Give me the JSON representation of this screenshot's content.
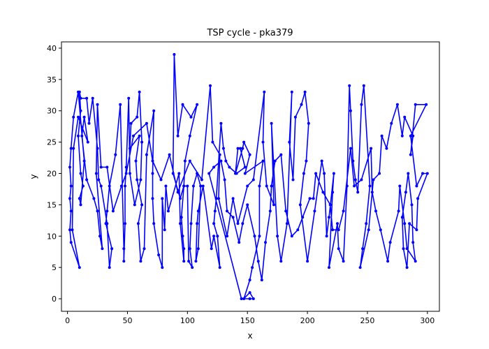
{
  "chart_data": {
    "type": "line",
    "title": "TSP cycle - pka379",
    "xlabel": "x",
    "ylabel": "y",
    "xlim": [
      -5,
      310
    ],
    "ylim": [
      -2,
      41
    ],
    "xticks": [
      0,
      50,
      100,
      150,
      200,
      250,
      300
    ],
    "yticks": [
      0,
      5,
      10,
      15,
      20,
      25,
      30,
      35,
      40
    ],
    "grid": false,
    "color": "#0000ff",
    "marker": "dot",
    "series": [
      {
        "closed": true,
        "points": [
          [
            145,
            0
          ],
          [
            152,
            0
          ],
          [
            155,
            0
          ],
          [
            152,
            1
          ],
          [
            147,
            0
          ],
          [
            152,
            3
          ],
          [
            154,
            5
          ],
          [
            160,
            10
          ],
          [
            160,
            18
          ],
          [
            163,
            22
          ],
          [
            148,
            20
          ],
          [
            152,
            23
          ],
          [
            147,
            25
          ],
          [
            146,
            24
          ],
          [
            140,
            20
          ],
          [
            142,
            24
          ],
          [
            144,
            24
          ],
          [
            148,
            21
          ],
          [
            141,
            20
          ],
          [
            135,
            21
          ],
          [
            132,
            22
          ],
          [
            130,
            24
          ],
          [
            128,
            28
          ],
          [
            124,
            16
          ],
          [
            123,
            14
          ],
          [
            122,
            12
          ],
          [
            125,
            10
          ],
          [
            127,
            5
          ],
          [
            122,
            10
          ],
          [
            120,
            8
          ],
          [
            113,
            18
          ],
          [
            109,
            14
          ],
          [
            108,
            12
          ],
          [
            107,
            6
          ],
          [
            109,
            8
          ],
          [
            111,
            18
          ],
          [
            108,
            20
          ],
          [
            105,
            18
          ],
          [
            103,
            12
          ],
          [
            102,
            8
          ],
          [
            104,
            5
          ],
          [
            101,
            6
          ],
          [
            100,
            18
          ],
          [
            97,
            18
          ],
          [
            94,
            16
          ],
          [
            88,
            20
          ],
          [
            89,
            39
          ],
          [
            92,
            26
          ],
          [
            96,
            31
          ],
          [
            103,
            29
          ],
          [
            108,
            31
          ],
          [
            102,
            26
          ],
          [
            98,
            22
          ],
          [
            97,
            18
          ],
          [
            95,
            13
          ],
          [
            96,
            10
          ],
          [
            97,
            8
          ],
          [
            97,
            6
          ],
          [
            94,
            12
          ],
          [
            93,
            20
          ],
          [
            84,
            14
          ],
          [
            82,
            18
          ],
          [
            81,
            11
          ],
          [
            79,
            16
          ],
          [
            79,
            5
          ],
          [
            76,
            7
          ],
          [
            72,
            12
          ],
          [
            71,
            16
          ],
          [
            71,
            20
          ],
          [
            72,
            30
          ],
          [
            66,
            23
          ],
          [
            64,
            8
          ],
          [
            61,
            6
          ],
          [
            59,
            12
          ],
          [
            62,
            15
          ],
          [
            58,
            19
          ],
          [
            57,
            22
          ],
          [
            60,
            26
          ],
          [
            52,
            24
          ],
          [
            53,
            28
          ],
          [
            58,
            29
          ],
          [
            60,
            33
          ],
          [
            62,
            25
          ],
          [
            61,
            19
          ],
          [
            56,
            15
          ],
          [
            52,
            20
          ],
          [
            51,
            32
          ],
          [
            49,
            21
          ],
          [
            48,
            18
          ],
          [
            48,
            12
          ],
          [
            47,
            6
          ],
          [
            47,
            8
          ],
          [
            44,
            31
          ],
          [
            40,
            23
          ],
          [
            35,
            18
          ],
          [
            33,
            14
          ],
          [
            32,
            12
          ],
          [
            37,
            8
          ],
          [
            35,
            5
          ],
          [
            33,
            12
          ],
          [
            28,
            18
          ],
          [
            26,
            19
          ],
          [
            25,
            24
          ],
          [
            21,
            32
          ],
          [
            18,
            28
          ],
          [
            16,
            32
          ],
          [
            11,
            32
          ],
          [
            10,
            33
          ],
          [
            11,
            30
          ],
          [
            9,
            26
          ],
          [
            11,
            20
          ],
          [
            13,
            18
          ],
          [
            10,
            16
          ],
          [
            11,
            15
          ],
          [
            14,
            22
          ],
          [
            9,
            33
          ],
          [
            5,
            29
          ],
          [
            3,
            24
          ],
          [
            2,
            21
          ],
          [
            3,
            18
          ],
          [
            2,
            16
          ],
          [
            3,
            14
          ],
          [
            2,
            11
          ],
          [
            3,
            9
          ],
          [
            10,
            5
          ],
          [
            4,
            11
          ],
          [
            5,
            24
          ],
          [
            9,
            29
          ],
          [
            17,
            25
          ],
          [
            14,
            29
          ],
          [
            12,
            26
          ],
          [
            16,
            19
          ],
          [
            22,
            16
          ],
          [
            25,
            14
          ],
          [
            27,
            10
          ],
          [
            29,
            8
          ],
          [
            24,
            20
          ],
          [
            25,
            31
          ],
          [
            28,
            21
          ],
          [
            33,
            21
          ],
          [
            38,
            14
          ],
          [
            45,
            18
          ],
          [
            49,
            20
          ],
          [
            55,
            26
          ],
          [
            66,
            28
          ],
          [
            71,
            22
          ],
          [
            78,
            19
          ],
          [
            85,
            23
          ],
          [
            92,
            17
          ],
          [
            102,
            22
          ],
          [
            112,
            19
          ],
          [
            119,
            34
          ],
          [
            121,
            25
          ],
          [
            127,
            23
          ],
          [
            126,
            16
          ],
          [
            133,
            10
          ],
          [
            138,
            16
          ],
          [
            142,
            12
          ],
          [
            150,
            18
          ],
          [
            155,
            19
          ],
          [
            164,
            33
          ],
          [
            163,
            25
          ],
          [
            166,
            18
          ],
          [
            172,
            15
          ],
          [
            170,
            28
          ],
          [
            175,
            10
          ],
          [
            178,
            6
          ],
          [
            183,
            12
          ],
          [
            187,
            33
          ],
          [
            185,
            25
          ],
          [
            188,
            19
          ],
          [
            190,
            29
          ],
          [
            195,
            31
          ],
          [
            198,
            33
          ],
          [
            201,
            28
          ],
          [
            199,
            22
          ],
          [
            197,
            20
          ],
          [
            194,
            15
          ],
          [
            200,
            6
          ],
          [
            206,
            14
          ],
          [
            212,
            22
          ],
          [
            214,
            20
          ],
          [
            216,
            10
          ],
          [
            218,
            13
          ],
          [
            222,
            20
          ],
          [
            221,
            17
          ],
          [
            218,
            5
          ],
          [
            225,
            12
          ],
          [
            226,
            8
          ],
          [
            230,
            6
          ],
          [
            233,
            18
          ],
          [
            235,
            34
          ],
          [
            236,
            30
          ],
          [
            238,
            22
          ],
          [
            240,
            19
          ],
          [
            242,
            17
          ],
          [
            245,
            31
          ],
          [
            247,
            34
          ],
          [
            252,
            18
          ],
          [
            249,
            12
          ],
          [
            246,
            8
          ],
          [
            244,
            5
          ],
          [
            251,
            11
          ],
          [
            255,
            19
          ],
          [
            260,
            20
          ],
          [
            262,
            26
          ],
          [
            266,
            24
          ],
          [
            270,
            28
          ],
          [
            275,
            31
          ],
          [
            279,
            26
          ],
          [
            281,
            29
          ],
          [
            288,
            26
          ],
          [
            286,
            23
          ],
          [
            290,
            31
          ],
          [
            299,
            31
          ],
          [
            286,
            26
          ],
          [
            291,
            18
          ],
          [
            296,
            20
          ],
          [
            300,
            20
          ],
          [
            292,
            16
          ],
          [
            291,
            11
          ],
          [
            285,
            12
          ],
          [
            283,
            5
          ],
          [
            280,
            8
          ],
          [
            279,
            13
          ],
          [
            282,
            17
          ],
          [
            284,
            20
          ],
          [
            287,
            15
          ],
          [
            288,
            9
          ],
          [
            290,
            6
          ],
          [
            283,
            8
          ],
          [
            281,
            12
          ],
          [
            277,
            18
          ],
          [
            276,
            14
          ],
          [
            269,
            9
          ],
          [
            267,
            6
          ],
          [
            261,
            11
          ],
          [
            257,
            14
          ],
          [
            254,
            17
          ],
          [
            253,
            24
          ],
          [
            245,
            19
          ],
          [
            239,
            18
          ],
          [
            236,
            24
          ],
          [
            230,
            14
          ],
          [
            226,
            11
          ],
          [
            221,
            11
          ],
          [
            219,
            15
          ],
          [
            213,
            17
          ],
          [
            207,
            20
          ],
          [
            205,
            16
          ],
          [
            202,
            16
          ],
          [
            196,
            13
          ],
          [
            192,
            11
          ],
          [
            187,
            10
          ],
          [
            182,
            14
          ],
          [
            178,
            23
          ],
          [
            173,
            22
          ],
          [
            170,
            18
          ],
          [
            169,
            14
          ],
          [
            165,
            9
          ],
          [
            162,
            3
          ],
          [
            159,
            6
          ],
          [
            156,
            10
          ],
          [
            150,
            15
          ],
          [
            146,
            12
          ],
          [
            143,
            9
          ],
          [
            138,
            13
          ],
          [
            133,
            14
          ],
          [
            131,
            19
          ],
          [
            128,
            22
          ],
          [
            122,
            21
          ],
          [
            118,
            20
          ]
        ]
      }
    ]
  }
}
